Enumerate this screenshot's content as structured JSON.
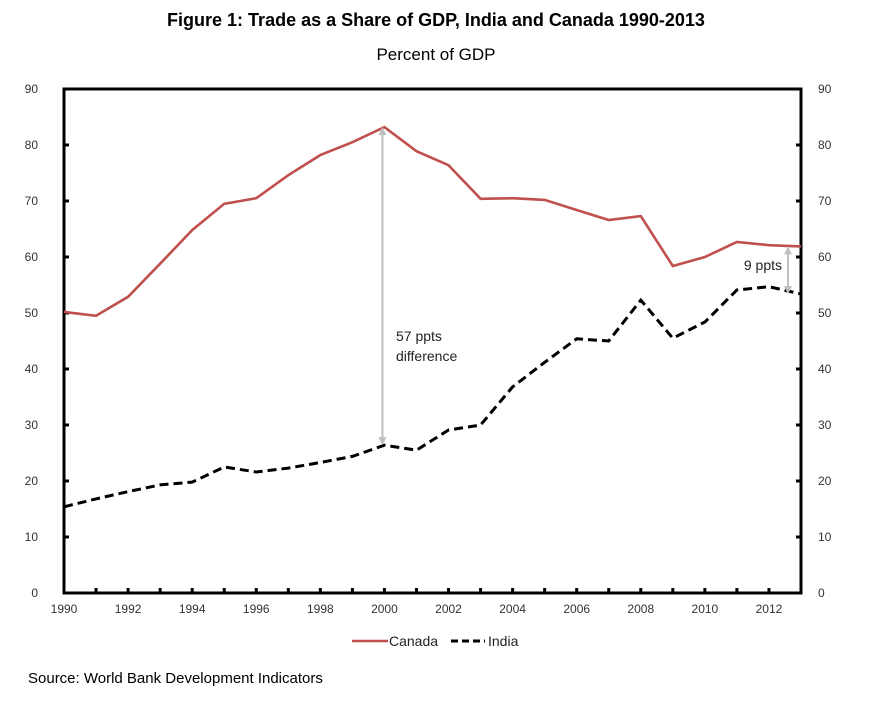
{
  "chart_data": {
    "type": "line",
    "title": "Figure 1: Trade as a Share of GDP, India and Canada 1990-2013",
    "subtitle": "Percent of GDP",
    "xlabel": "",
    "ylabel": "",
    "x": [
      1990,
      1991,
      1992,
      1993,
      1994,
      1995,
      1996,
      1997,
      1998,
      1999,
      2000,
      2001,
      2002,
      2003,
      2004,
      2005,
      2006,
      2007,
      2008,
      2009,
      2010,
      2011,
      2012,
      2013
    ],
    "x_tick_labels": [
      "1990",
      "1992",
      "1994",
      "1996",
      "1998",
      "2000",
      "2002",
      "2004",
      "2006",
      "2008",
      "2010",
      "2012"
    ],
    "ylim": [
      0,
      90
    ],
    "y_tick_labels": [
      "0",
      "10",
      "20",
      "30",
      "40",
      "50",
      "60",
      "70",
      "80",
      "90"
    ],
    "secondary_y_tick_labels": [
      "0",
      "10",
      "20",
      "30",
      "40",
      "50",
      "60",
      "70",
      "80",
      "90"
    ],
    "grid": false,
    "legend_position": "bottom",
    "series": [
      {
        "name": "Canada",
        "color": "#c0504d",
        "style": "solid",
        "values": [
          50.2,
          49.5,
          52.9,
          58.8,
          64.8,
          69.5,
          70.5,
          74.6,
          78.2,
          80.5,
          83.2,
          78.9,
          76.4,
          70.4,
          70.5,
          70.2,
          68.4,
          66.6,
          67.3,
          58.4,
          60.0,
          62.7,
          62.1,
          61.9
        ]
      },
      {
        "name": "India",
        "color": "#000000",
        "style": "dashed",
        "values": [
          15.4,
          16.8,
          18.1,
          19.3,
          19.8,
          22.5,
          21.6,
          22.3,
          23.3,
          24.4,
          26.4,
          25.5,
          29.1,
          30.0,
          36.8,
          41.2,
          45.4,
          45.0,
          52.3,
          45.5,
          48.4,
          54.1,
          54.7,
          53.4
        ]
      }
    ],
    "annotations": [
      {
        "text_lines": [
          "57 ppts",
          "difference"
        ],
        "year": 2000,
        "from_value": 83.2,
        "to_value": 26.4
      },
      {
        "text_lines": [
          "9 ppts"
        ],
        "year": 2013,
        "from_value": 61.9,
        "to_value": 53.4
      }
    ],
    "annotation_arrow_color": "#bfbfbf"
  },
  "source": "Source: World Bank Development  Indicators"
}
